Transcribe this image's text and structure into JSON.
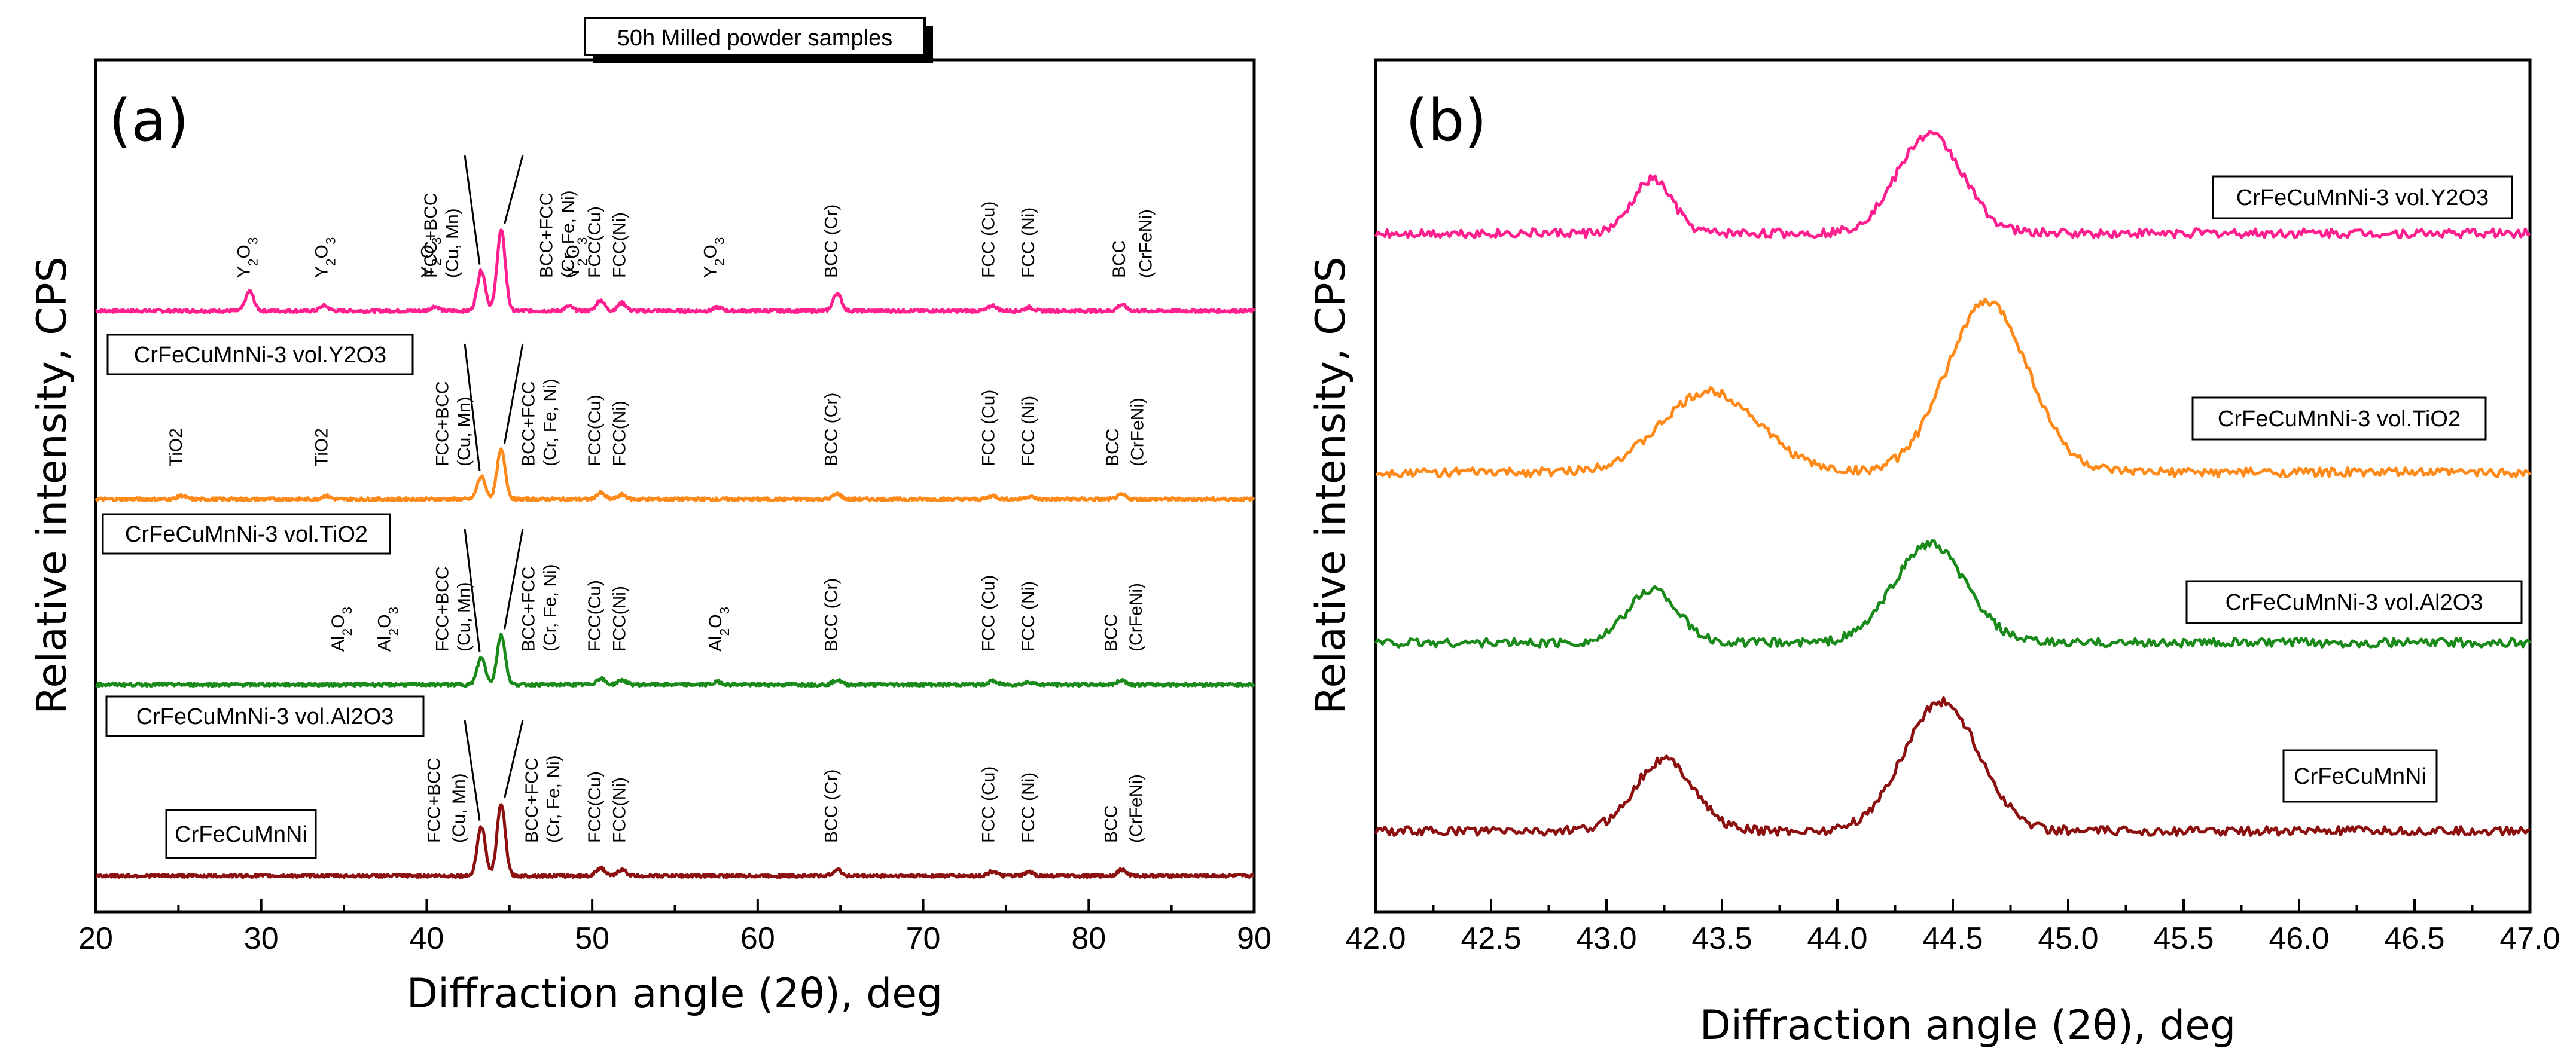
{
  "header_label": "50h Milled powder samples",
  "chart_data": [
    {
      "type": "line",
      "panel": "(a)",
      "xlabel": "Diffraction angle (2θ), deg",
      "ylabel": "Relative intensity, CPS",
      "xlim": [
        20,
        90
      ],
      "x_ticks": [
        "20",
        "30",
        "40",
        "50",
        "60",
        "70",
        "80",
        "90"
      ],
      "series": [
        {
          "name": "CrFeCuMnNi-3 vol.Y2O3",
          "color": "#ff1f8e",
          "offset": 3,
          "peaks": [
            [
              29.3,
              0.22
            ],
            [
              33.8,
              0.06
            ],
            [
              40.5,
              0.05
            ],
            [
              43.3,
              0.45
            ],
            [
              44.5,
              0.9
            ],
            [
              48.6,
              0.05
            ],
            [
              50.5,
              0.12
            ],
            [
              51.8,
              0.09
            ],
            [
              57.6,
              0.04
            ],
            [
              64.8,
              0.2
            ],
            [
              74.2,
              0.06
            ],
            [
              76.4,
              0.04
            ],
            [
              82.0,
              0.07
            ]
          ],
          "annotations": [
            {
              "x": 29.3,
              "label": "Y2O3"
            },
            {
              "x": 34.0,
              "label": "Y2O3"
            },
            {
              "x": 40.4,
              "label": "Y2O3"
            },
            {
              "x": 49.2,
              "label": "Y2O3"
            },
            {
              "x": 50.5,
              "label": "FCC(Cu)"
            },
            {
              "x": 52.0,
              "label": "FCC(Ni)"
            },
            {
              "x": 57.5,
              "label": "Y2O3"
            },
            {
              "x": 64.8,
              "label": "BCC (Cr)"
            },
            {
              "x": 74.3,
              "label": "FCC (Cu)"
            },
            {
              "x": 76.7,
              "label": "FCC (Ni)"
            },
            {
              "x": 82.2,
              "label": "BCC"
            },
            {
              "x": 83.8,
              "label": "(CrFeNi)"
            },
            {
              "x": 40.6,
              "label": "FCC+BCC"
            },
            {
              "x": 41.9,
              "label": "(Cu, Mn)"
            },
            {
              "x": 47.6,
              "label": "BCC+FCC"
            },
            {
              "x": 48.9,
              "label": "(Cr, Fe, Ni)"
            }
          ]
        },
        {
          "name": "CrFeCuMnNi-3 vol.TiO2",
          "color": "#ff8a1a",
          "offset": 2,
          "peaks": [
            [
              25.2,
              0.04
            ],
            [
              33.9,
              0.04
            ],
            [
              43.3,
              0.25
            ],
            [
              44.5,
              0.55
            ],
            [
              50.5,
              0.07
            ],
            [
              51.8,
              0.05
            ],
            [
              64.8,
              0.06
            ],
            [
              74.2,
              0.04
            ],
            [
              76.4,
              0.03
            ],
            [
              82.0,
              0.05
            ]
          ],
          "annotations": [
            {
              "x": 25.2,
              "label": "TiO2"
            },
            {
              "x": 34.0,
              "label": "TiO2"
            },
            {
              "x": 50.5,
              "label": "FCC(Cu)"
            },
            {
              "x": 52.0,
              "label": "FCC(Ni)"
            },
            {
              "x": 64.8,
              "label": "BCC (Cr)"
            },
            {
              "x": 74.3,
              "label": "FCC (Cu)"
            },
            {
              "x": 76.7,
              "label": "FCC (Ni)"
            },
            {
              "x": 81.8,
              "label": "BCC"
            },
            {
              "x": 83.3,
              "label": "(CrFeNi)"
            },
            {
              "x": 41.3,
              "label": "FCC+BCC"
            },
            {
              "x": 42.6,
              "label": "(Cu, Mn)"
            },
            {
              "x": 46.5,
              "label": "BCC+FCC"
            },
            {
              "x": 47.8,
              "label": "(Cr, Fe, Ni)"
            }
          ]
        },
        {
          "name": "CrFeCuMnNi-3 vol.Al2O3",
          "color": "#1a8a1a",
          "offset": 1,
          "peaks": [
            [
              43.3,
              0.3
            ],
            [
              44.5,
              0.55
            ],
            [
              50.5,
              0.07
            ],
            [
              51.8,
              0.05
            ],
            [
              57.6,
              0.03
            ],
            [
              64.8,
              0.05
            ],
            [
              74.2,
              0.04
            ],
            [
              76.4,
              0.03
            ],
            [
              82.0,
              0.05
            ]
          ],
          "annotations": [
            {
              "x": 35.0,
              "label": "Al2O3"
            },
            {
              "x": 37.8,
              "label": "Al2O3"
            },
            {
              "x": 50.5,
              "label": "FCC(Cu)"
            },
            {
              "x": 52.0,
              "label": "FCC(Ni)"
            },
            {
              "x": 57.8,
              "label": "Al2O3"
            },
            {
              "x": 64.8,
              "label": "BCC (Cr)"
            },
            {
              "x": 74.3,
              "label": "FCC (Cu)"
            },
            {
              "x": 76.7,
              "label": "FCC (Ni)"
            },
            {
              "x": 81.7,
              "label": "BCC"
            },
            {
              "x": 83.2,
              "label": "(CrFeNi)"
            },
            {
              "x": 41.3,
              "label": "FCC+BCC"
            },
            {
              "x": 42.6,
              "label": "(Cu, Mn)"
            },
            {
              "x": 46.5,
              "label": "BCC+FCC"
            },
            {
              "x": 47.8,
              "label": "(Cr, Fe, Ni)"
            }
          ]
        },
        {
          "name": "CrFeCuMnNi",
          "color": "#8c1010",
          "offset": 0,
          "peaks": [
            [
              43.3,
              0.55
            ],
            [
              44.5,
              0.8
            ],
            [
              50.5,
              0.09
            ],
            [
              51.8,
              0.07
            ],
            [
              64.8,
              0.07
            ],
            [
              74.2,
              0.05
            ],
            [
              76.4,
              0.04
            ],
            [
              82.0,
              0.07
            ]
          ],
          "annotations": [
            {
              "x": 50.5,
              "label": "FCC(Cu)"
            },
            {
              "x": 52.0,
              "label": "FCC(Ni)"
            },
            {
              "x": 64.8,
              "label": "BCC (Cr)"
            },
            {
              "x": 74.3,
              "label": "FCC (Cu)"
            },
            {
              "x": 76.7,
              "label": "FCC (Ni)"
            },
            {
              "x": 81.7,
              "label": "BCC"
            },
            {
              "x": 83.2,
              "label": "(CrFeNi)"
            },
            {
              "x": 40.8,
              "label": "FCC+BCC"
            },
            {
              "x": 42.3,
              "label": "(Cu, Mn)"
            },
            {
              "x": 46.7,
              "label": "BCC+FCC"
            },
            {
              "x": 48.0,
              "label": "(Cr, Fe, Ni)"
            }
          ]
        }
      ]
    },
    {
      "type": "line",
      "panel": "(b)",
      "xlabel": "Diffraction angle (2θ), deg",
      "ylabel": "Relative intensity, CPS",
      "xlim": [
        42.0,
        47.0
      ],
      "x_ticks": [
        "42.0",
        "42.5",
        "43.0",
        "43.5",
        "44.0",
        "44.5",
        "45.0",
        "45.5",
        "46.0",
        "46.5",
        "47.0"
      ],
      "series": [
        {
          "name": "CrFeCuMnNi-3 vol.Y2O3",
          "color": "#ff1f8e",
          "offset": 3,
          "peaks": [
            [
              43.2,
              0.3,
              0.12
            ],
            [
              44.4,
              0.55,
              0.2
            ]
          ]
        },
        {
          "name": "CrFeCuMnNi-3 vol.TiO2",
          "color": "#ff8a1a",
          "offset": 2,
          "peaks": [
            [
              43.45,
              0.45,
              0.3
            ],
            [
              44.65,
              0.95,
              0.25
            ]
          ]
        },
        {
          "name": "CrFeCuMnNi-3 vol.Al2O3",
          "color": "#1a8a1a",
          "offset": 1,
          "peaks": [
            [
              43.2,
              0.3,
              0.15
            ],
            [
              44.4,
              0.55,
              0.22
            ]
          ]
        },
        {
          "name": "CrFeCuMnNi",
          "color": "#8c1010",
          "offset": 0,
          "peaks": [
            [
              43.25,
              0.4,
              0.18
            ],
            [
              44.45,
              0.72,
              0.23
            ]
          ]
        }
      ]
    }
  ]
}
